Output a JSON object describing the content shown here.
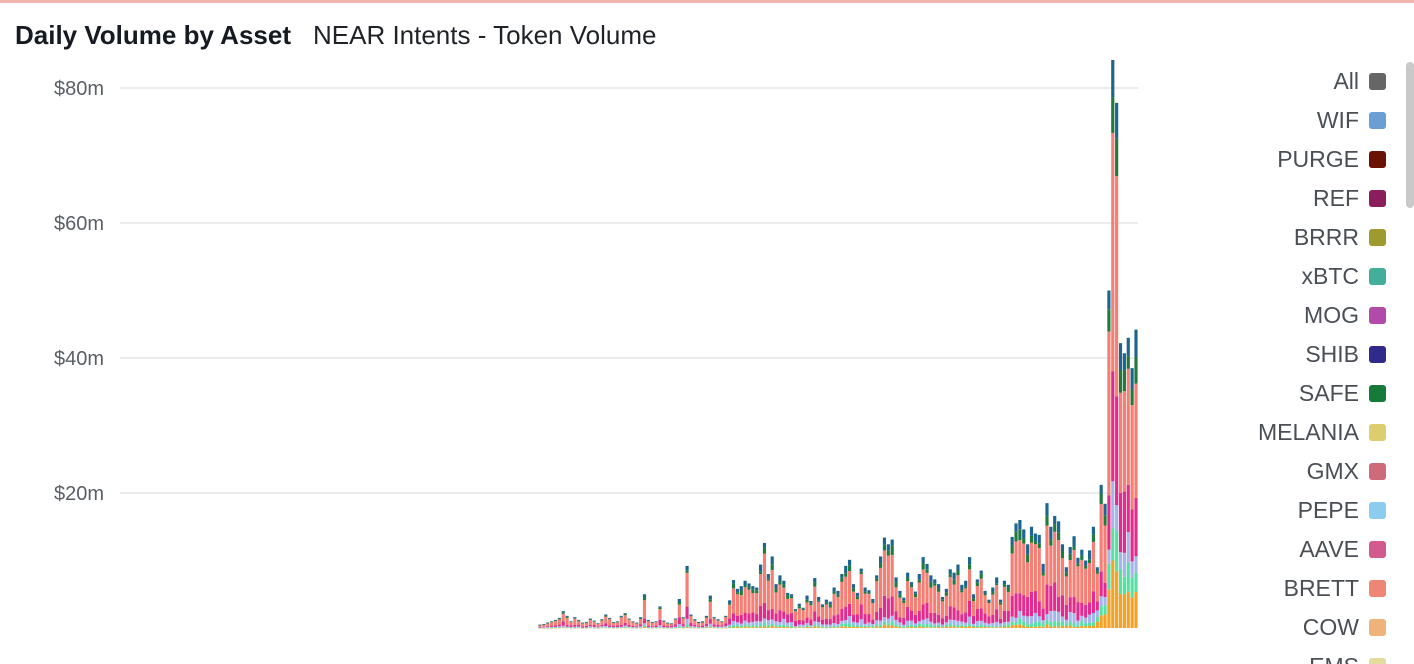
{
  "header": {
    "title": "Daily Volume by Asset",
    "subtitle": "NEAR Intents - Token Volume"
  },
  "chart_data": {
    "type": "bar",
    "stacked": true,
    "title": "Daily Volume by Asset",
    "subtitle": "NEAR Intents - Token Volume",
    "xlabel": "",
    "ylabel": "",
    "ylim": [
      0,
      80000000
    ],
    "yticks": [
      20000000,
      40000000,
      60000000,
      80000000
    ],
    "ytick_labels": [
      "$20m",
      "$40m",
      "$60m",
      "$80m"
    ],
    "grid": true,
    "legend_position": "right",
    "legend": [
      {
        "name": "All",
        "color": "#666666"
      },
      {
        "name": "WIF",
        "color": "#6b9fd3"
      },
      {
        "name": "PURGE",
        "color": "#6b1206"
      },
      {
        "name": "REF",
        "color": "#8a1d5b"
      },
      {
        "name": "BRRR",
        "color": "#9e9a2d"
      },
      {
        "name": "xBTC",
        "color": "#44ae9b"
      },
      {
        "name": "MOG",
        "color": "#b14aa8"
      },
      {
        "name": "SHIB",
        "color": "#2f2a8c"
      },
      {
        "name": "SAFE",
        "color": "#167a3a"
      },
      {
        "name": "MELANIA",
        "color": "#dccd6e"
      },
      {
        "name": "GMX",
        "color": "#cf6a7a"
      },
      {
        "name": "PEPE",
        "color": "#8cccef"
      },
      {
        "name": "AAVE",
        "color": "#d25a8c"
      },
      {
        "name": "BRETT",
        "color": "#ef8574"
      },
      {
        "name": "COW",
        "color": "#efb27b"
      },
      {
        "name": "EMS",
        "color": "#e4dc9e"
      }
    ],
    "visible_stack_colors": [
      "#f57f74",
      "#e22c8d",
      "#1f7a3c",
      "#1c6590",
      "#f5a123",
      "#56e0a2",
      "#a3b5ea"
    ],
    "daily_total_peaks_millions": [
      0.5,
      0.6,
      0.8,
      1.0,
      1.2,
      1.5,
      2.5,
      1.8,
      1.0,
      1.6,
      1.2,
      0.8,
      0.9,
      1.4,
      1.1,
      0.7,
      1.3,
      2.0,
      1.5,
      0.9,
      1.0,
      1.8,
      2.2,
      1.4,
      1.0,
      0.8,
      1.6,
      5.0,
      1.2,
      0.9,
      1.0,
      3.2,
      1.1,
      0.8,
      0.7,
      1.4,
      4.3,
      1.6,
      9.2,
      2.0,
      1.3,
      0.9,
      1.0,
      1.8,
      4.8,
      1.6,
      1.3,
      1.0,
      1.8,
      4.1,
      7.1,
      5.8,
      6.2,
      7.0,
      6.6,
      6.2,
      6.0,
      9.4,
      12.6,
      8.0,
      10.6,
      6.5,
      7.8,
      7.0,
      5.2,
      5.0,
      2.8,
      3.6,
      3.0,
      4.8,
      4.0,
      7.4,
      4.6,
      3.5,
      4.2,
      3.9,
      6.0,
      5.5,
      8.0,
      9.2,
      10.1,
      6.5,
      5.2,
      8.8,
      6.0,
      5.6,
      4.3,
      7.8,
      10.6,
      13.4,
      12.4,
      13.1,
      7.5,
      5.5,
      4.5,
      8.2,
      6.8,
      5.4,
      8.0,
      10.5,
      9.5,
      7.8,
      7.2,
      6.5,
      4.6,
      5.8,
      8.7,
      8.2,
      9.4,
      6.4,
      7.0,
      10.5,
      5.0,
      7.2,
      8.5,
      5.5,
      4.2,
      6.0,
      7.5,
      4.2,
      7.0,
      6.4,
      13.5,
      15.5,
      16.0,
      14.6,
      12.4,
      15.0,
      14.0,
      13.8,
      9.5,
      18.5,
      15.0,
      16.6,
      15.8,
      12.4,
      9.0,
      12.0,
      13.6,
      10.4,
      11.6,
      10.0,
      11.5,
      15.0,
      9.0,
      21.2,
      18.4,
      50.0,
      87.2,
      77.8,
      42.2,
      40.7,
      43.0,
      38.5,
      44.2
    ]
  }
}
